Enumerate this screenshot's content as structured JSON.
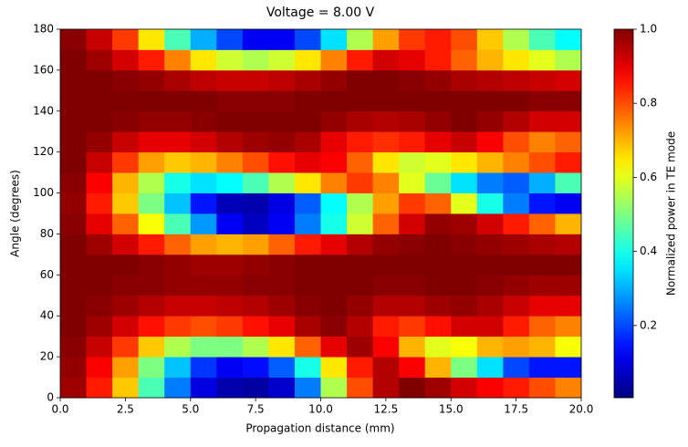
{
  "chart_data": {
    "type": "heatmap",
    "title": "Voltage = 8.00 V",
    "x_label": "Propagation distance (mm)",
    "y_label": "Angle (degrees)",
    "colorbar_label": "Normalized power in TE mode",
    "colormap": "jet",
    "x": [
      0.5,
      1.5,
      2.5,
      3.5,
      4.5,
      5.5,
      6.5,
      7.5,
      8.5,
      9.5,
      10.5,
      11.5,
      12.5,
      13.5,
      14.5,
      15.5,
      16.5,
      17.5,
      18.5,
      19.5
    ],
    "y": [
      5,
      15,
      25,
      35,
      45,
      55,
      65,
      75,
      85,
      95,
      105,
      115,
      125,
      135,
      145,
      155,
      165,
      175
    ],
    "values": [
      [
        0.97,
        0.85,
        0.68,
        0.45,
        0.25,
        0.1,
        0.05,
        0.04,
        0.08,
        0.25,
        0.55,
        0.8,
        0.95,
        1.0,
        0.97,
        0.92,
        0.88,
        0.85,
        0.8,
        0.75
      ],
      [
        0.98,
        0.88,
        0.72,
        0.5,
        0.32,
        0.18,
        0.12,
        0.14,
        0.22,
        0.4,
        0.65,
        0.85,
        0.95,
        0.88,
        0.7,
        0.5,
        0.35,
        0.2,
        0.15,
        0.15
      ],
      [
        0.99,
        0.93,
        0.82,
        0.68,
        0.55,
        0.5,
        0.5,
        0.55,
        0.65,
        0.78,
        0.9,
        0.97,
        0.88,
        0.7,
        0.6,
        0.62,
        0.7,
        0.72,
        0.7,
        0.62
      ],
      [
        1.0,
        0.97,
        0.92,
        0.86,
        0.82,
        0.8,
        0.82,
        0.86,
        0.9,
        0.96,
        0.99,
        0.95,
        0.85,
        0.82,
        0.86,
        0.92,
        0.92,
        0.85,
        0.78,
        0.75
      ],
      [
        1.0,
        0.99,
        0.97,
        0.95,
        0.93,
        0.93,
        0.94,
        0.95,
        0.97,
        0.99,
        1.0,
        0.98,
        0.95,
        0.95,
        0.97,
        0.98,
        0.96,
        0.93,
        0.9,
        0.9
      ],
      [
        1.0,
        1.0,
        0.99,
        0.99,
        0.98,
        0.98,
        0.98,
        0.99,
        0.99,
        1.0,
        1.0,
        1.0,
        0.99,
        0.99,
        1.0,
        1.0,
        0.99,
        0.98,
        0.97,
        0.97
      ],
      [
        1.0,
        1.0,
        1.0,
        0.99,
        0.98,
        0.97,
        0.97,
        0.98,
        0.99,
        1.0,
        1.0,
        1.0,
        1.0,
        1.0,
        1.0,
        1.0,
        1.0,
        1.0,
        1.0,
        1.0
      ],
      [
        1.0,
        0.97,
        0.92,
        0.85,
        0.78,
        0.72,
        0.7,
        0.72,
        0.78,
        0.85,
        0.9,
        0.95,
        0.98,
        0.99,
        1.0,
        0.99,
        0.98,
        0.97,
        0.96,
        0.95
      ],
      [
        0.99,
        0.9,
        0.78,
        0.62,
        0.45,
        0.28,
        0.12,
        0.07,
        0.12,
        0.25,
        0.4,
        0.58,
        0.78,
        0.92,
        0.98,
        0.97,
        0.92,
        0.85,
        0.78,
        0.7
      ],
      [
        0.98,
        0.85,
        0.68,
        0.5,
        0.32,
        0.15,
        0.06,
        0.05,
        0.1,
        0.22,
        0.38,
        0.55,
        0.72,
        0.82,
        0.78,
        0.6,
        0.4,
        0.25,
        0.15,
        0.12
      ],
      [
        0.99,
        0.88,
        0.7,
        0.55,
        0.4,
        0.35,
        0.38,
        0.45,
        0.55,
        0.65,
        0.75,
        0.82,
        0.75,
        0.6,
        0.48,
        0.35,
        0.25,
        0.22,
        0.3,
        0.45
      ],
      [
        1.0,
        0.93,
        0.82,
        0.72,
        0.68,
        0.7,
        0.75,
        0.8,
        0.86,
        0.9,
        0.88,
        0.78,
        0.65,
        0.58,
        0.6,
        0.65,
        0.7,
        0.75,
        0.8,
        0.85
      ],
      [
        1.0,
        0.98,
        0.93,
        0.9,
        0.9,
        0.92,
        0.95,
        0.97,
        0.98,
        0.96,
        0.9,
        0.85,
        0.83,
        0.85,
        0.9,
        0.93,
        0.88,
        0.8,
        0.75,
        0.78
      ],
      [
        1.0,
        1.0,
        0.99,
        0.98,
        0.98,
        0.99,
        1.0,
        1.0,
        1.0,
        1.0,
        0.98,
        0.96,
        0.95,
        0.96,
        0.98,
        1.0,
        0.98,
        0.95,
        0.92,
        0.92
      ],
      [
        1.0,
        1.0,
        1.0,
        1.0,
        1.0,
        1.0,
        0.99,
        0.99,
        0.99,
        1.0,
        1.0,
        1.0,
        1.0,
        1.0,
        1.0,
        1.0,
        1.0,
        1.0,
        0.99,
        0.99
      ],
      [
        1.0,
        1.0,
        0.99,
        0.98,
        0.96,
        0.94,
        0.93,
        0.93,
        0.94,
        0.96,
        0.98,
        1.0,
        1.0,
        0.99,
        0.98,
        0.96,
        0.95,
        0.94,
        0.93,
        0.92
      ],
      [
        1.0,
        0.97,
        0.92,
        0.85,
        0.75,
        0.65,
        0.58,
        0.55,
        0.58,
        0.65,
        0.75,
        0.85,
        0.92,
        0.9,
        0.85,
        0.78,
        0.7,
        0.65,
        0.6,
        0.55
      ],
      [
        0.99,
        0.93,
        0.82,
        0.65,
        0.45,
        0.3,
        0.2,
        0.12,
        0.12,
        0.2,
        0.35,
        0.55,
        0.72,
        0.82,
        0.85,
        0.8,
        0.68,
        0.55,
        0.45,
        0.38
      ]
    ],
    "xlim": [
      0,
      20
    ],
    "ylim": [
      0,
      180
    ],
    "clim": [
      0.005,
      1
    ],
    "xticks": [
      {
        "value": 0,
        "label": "0.0"
      },
      2.5,
      {
        "value": 5,
        "label": "5.0"
      },
      7.5,
      {
        "value": 10,
        "label": "10.0"
      },
      12.5,
      {
        "value": 15,
        "label": "15.0"
      },
      17.5,
      {
        "value": 20,
        "label": "20.0"
      }
    ],
    "yticks": [
      0,
      20,
      40,
      60,
      80,
      100,
      120,
      140,
      160,
      180
    ],
    "cticks": [
      0.2,
      0.4,
      0.6,
      0.8,
      {
        "value": 1,
        "label": "1.0"
      }
    ]
  }
}
